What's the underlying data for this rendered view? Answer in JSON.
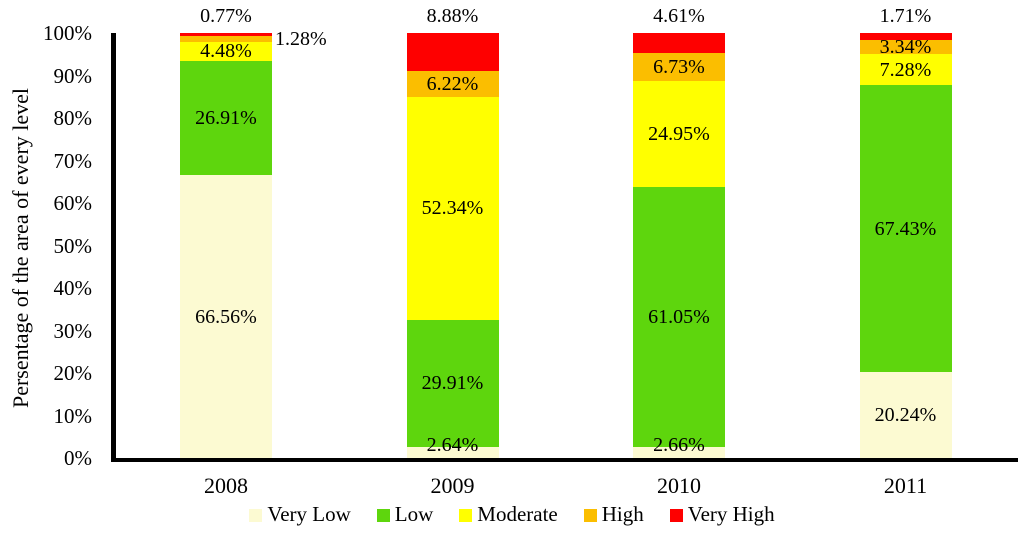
{
  "chart_data": {
    "type": "bar",
    "stacked": true,
    "ylabel": "Persentage of the area of every level",
    "xlabel": "",
    "categories": [
      "2008",
      "2009",
      "2010",
      "2011"
    ],
    "series": [
      {
        "name": "Very Low",
        "color": "#FCFAD2",
        "values": [
          66.56,
          2.64,
          2.66,
          20.24
        ],
        "labels": [
          "66.56%",
          "2.64%",
          "2.66%",
          "20.24%"
        ]
      },
      {
        "name": "Low",
        "color": "#5ED60D",
        "values": [
          26.91,
          29.91,
          61.05,
          67.43
        ],
        "labels": [
          "26.91%",
          "29.91%",
          "61.05%",
          "67.43%"
        ]
      },
      {
        "name": "Moderate",
        "color": "#FFFF00",
        "values": [
          4.48,
          52.34,
          24.95,
          7.28
        ],
        "labels": [
          "4.48%",
          "52.34%",
          "24.95%",
          "7.28%"
        ]
      },
      {
        "name": "High",
        "color": "#FBBE00",
        "values": [
          1.28,
          6.22,
          6.73,
          3.34
        ],
        "labels": [
          "1.28%",
          "6.22%",
          "6.73%",
          "3.34%"
        ]
      },
      {
        "name": "Very High",
        "color": "#FE0000",
        "values": [
          0.77,
          8.88,
          4.61,
          1.71
        ],
        "labels": [
          "0.77%",
          "8.88%",
          "4.61%",
          "1.71%"
        ]
      }
    ],
    "y_ticks": [
      "0%",
      "10%",
      "20%",
      "30%",
      "40%",
      "50%",
      "60%",
      "70%",
      "80%",
      "90%",
      "100%"
    ],
    "ylim": [
      0,
      100
    ],
    "grid": false,
    "legend_position": "bottom",
    "legend": [
      "Very Low",
      "Low",
      "Moderate",
      "High",
      "Very High"
    ],
    "label_placement": {
      "above_bar_series": "Very High",
      "outside_right": [
        {
          "category": "2008",
          "series": "High"
        }
      ]
    }
  }
}
